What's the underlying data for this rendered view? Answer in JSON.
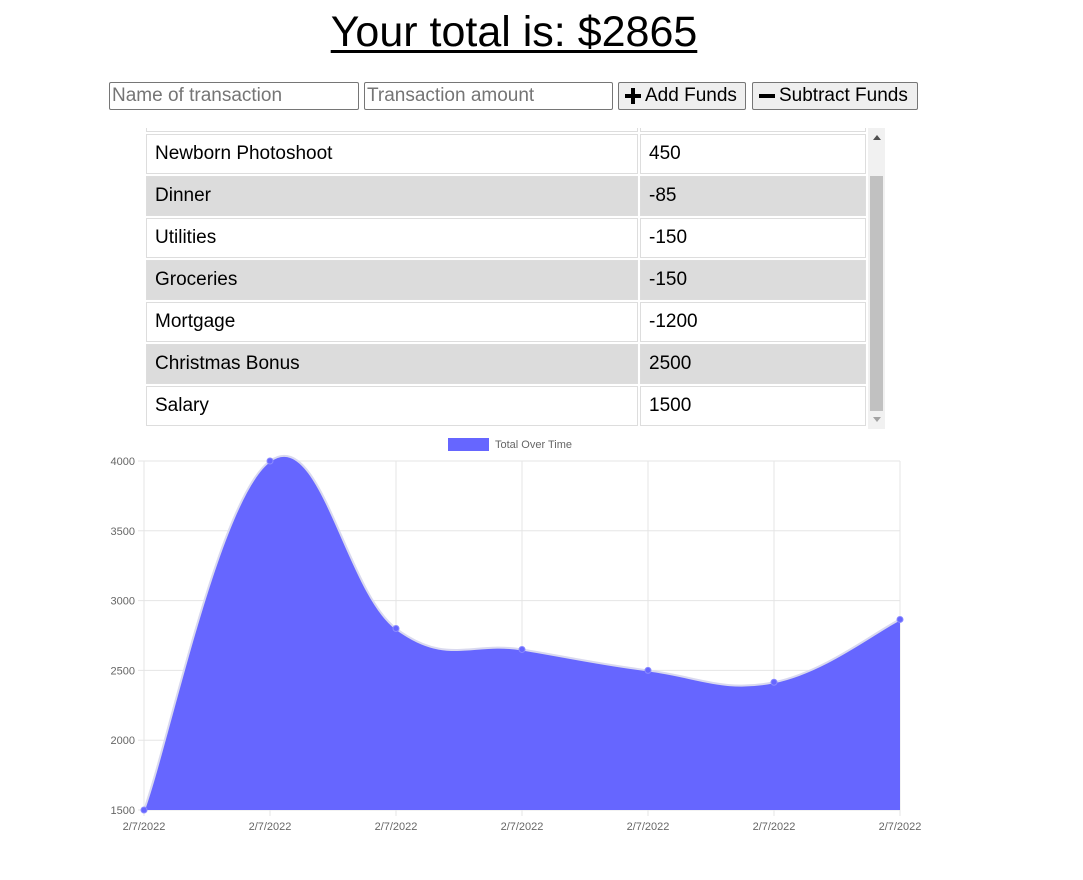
{
  "header": {
    "title": "Your total is: $2865"
  },
  "form": {
    "name_placeholder": "Name of transaction",
    "amount_placeholder": "Transaction amount",
    "add_label": "Add Funds",
    "subtract_label": "Subtract Funds"
  },
  "transactions": [
    {
      "name": "Newborn Photoshoot",
      "amount": "450"
    },
    {
      "name": "Dinner",
      "amount": "-85"
    },
    {
      "name": "Utilities",
      "amount": "-150"
    },
    {
      "name": "Groceries",
      "amount": "-150"
    },
    {
      "name": "Mortgage",
      "amount": "-1200"
    },
    {
      "name": "Christmas Bonus",
      "amount": "2500"
    },
    {
      "name": "Salary",
      "amount": "1500"
    }
  ],
  "chart_data": {
    "type": "area",
    "legend": "Total Over Time",
    "legend_position": "top",
    "series": [
      {
        "name": "Total Over Time",
        "color": "#6666ff",
        "values": [
          1500,
          4000,
          2800,
          2650,
          2500,
          2415,
          2865
        ]
      }
    ],
    "x": [
      "2/7/2022",
      "2/7/2022",
      "2/7/2022",
      "2/7/2022",
      "2/7/2022",
      "2/7/2022",
      "2/7/2022"
    ],
    "y_ticks": [
      1500,
      2000,
      2500,
      3000,
      3500,
      4000
    ],
    "ylim": [
      1500,
      4000
    ],
    "grid": true
  }
}
